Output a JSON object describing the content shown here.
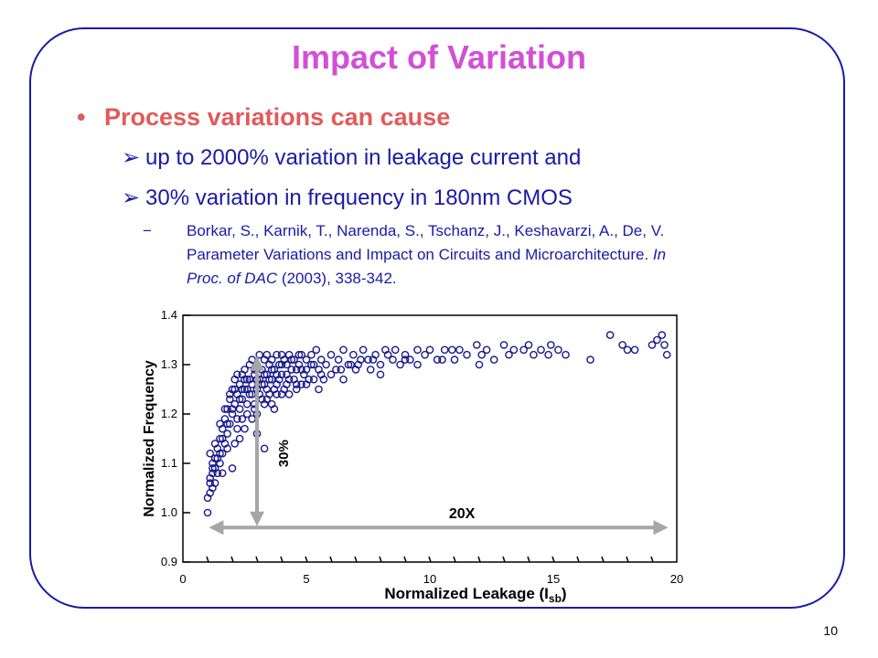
{
  "slide": {
    "title": "Impact of Variation",
    "bullet": "Process variations can cause",
    "sub1": "up to 2000% variation in leakage current and",
    "sub2": "30% variation in frequency in 180nm CMOS",
    "ref_dash": "−",
    "ref_line1": "Borkar, S., Karnik, T., Narenda, S., Tschanz, J., Keshavarzi, A., De, V.",
    "ref_line2a": "Parameter Variations and Impact on Circuits and Microarchitecture. ",
    "ref_line2b": "In",
    "ref_line3a": "Proc. of DAC",
    "ref_line3b": " (2003), 338-342.",
    "page_number": "10",
    "bullet_symbol": "•",
    "arrow_symbol": "➢"
  },
  "chart_data": {
    "type": "scatter",
    "xlabel": "Normalized Leakage (I",
    "xlabel_sub": "sb",
    "xlabel_close": ")",
    "ylabel": "Normalized Frequency",
    "xlim": [
      0,
      20
    ],
    "ylim": [
      0.9,
      1.4
    ],
    "x_ticks": [
      "0",
      "5",
      "10",
      "15",
      "20"
    ],
    "y_ticks": [
      "0.9",
      "1.0",
      "1.1",
      "1.2",
      "1.3",
      "1.4"
    ],
    "annotation_vertical": "30%",
    "annotation_horizontal": "20X",
    "marker_color": "#1a1a8c",
    "points": [
      [
        1.0,
        1.0
      ],
      [
        1.1,
        1.04
      ],
      [
        1.1,
        1.07
      ],
      [
        1.2,
        1.05
      ],
      [
        1.2,
        1.09
      ],
      [
        1.3,
        1.11
      ],
      [
        1.3,
        1.06
      ],
      [
        1.4,
        1.08
      ],
      [
        1.4,
        1.13
      ],
      [
        1.5,
        1.1
      ],
      [
        1.5,
        1.15
      ],
      [
        1.6,
        1.12
      ],
      [
        1.6,
        1.17
      ],
      [
        1.7,
        1.14
      ],
      [
        1.7,
        1.19
      ],
      [
        1.8,
        1.16
      ],
      [
        1.8,
        1.21
      ],
      [
        1.9,
        1.18
      ],
      [
        1.9,
        1.23
      ],
      [
        2.0,
        1.2
      ],
      [
        2.0,
        1.25
      ],
      [
        2.1,
        1.22
      ],
      [
        2.1,
        1.27
      ],
      [
        2.2,
        1.24
      ],
      [
        2.2,
        1.19
      ],
      [
        2.3,
        1.26
      ],
      [
        2.3,
        1.21
      ],
      [
        2.4,
        1.28
      ],
      [
        2.4,
        1.23
      ],
      [
        2.5,
        1.25
      ],
      [
        2.5,
        1.29
      ],
      [
        2.6,
        1.22
      ],
      [
        2.6,
        1.27
      ],
      [
        2.7,
        1.3
      ],
      [
        2.7,
        1.24
      ],
      [
        2.8,
        1.26
      ],
      [
        2.8,
        1.31
      ],
      [
        2.9,
        1.28
      ],
      [
        2.9,
        1.22
      ],
      [
        3.0,
        1.3
      ],
      [
        3.0,
        1.25
      ],
      [
        3.1,
        1.27
      ],
      [
        3.1,
        1.32
      ],
      [
        3.2,
        1.29
      ],
      [
        3.2,
        1.23
      ],
      [
        3.3,
        1.31
      ],
      [
        3.3,
        1.26
      ],
      [
        3.4,
        1.28
      ],
      [
        3.4,
        1.32
      ],
      [
        3.5,
        1.3
      ],
      [
        3.5,
        1.24
      ],
      [
        3.6,
        1.27
      ],
      [
        3.6,
        1.31
      ],
      [
        3.7,
        1.29
      ],
      [
        3.8,
        1.32
      ],
      [
        3.8,
        1.26
      ],
      [
        3.9,
        1.3
      ],
      [
        4.0,
        1.28
      ],
      [
        4.0,
        1.32
      ],
      [
        4.1,
        1.25
      ],
      [
        4.2,
        1.3
      ],
      [
        4.3,
        1.27
      ],
      [
        4.3,
        1.32
      ],
      [
        4.4,
        1.29
      ],
      [
        4.5,
        1.31
      ],
      [
        4.6,
        1.26
      ],
      [
        4.7,
        1.3
      ],
      [
        4.8,
        1.32
      ],
      [
        4.9,
        1.28
      ],
      [
        5.0,
        1.31
      ],
      [
        5.1,
        1.27
      ],
      [
        5.2,
        1.32
      ],
      [
        5.3,
        1.3
      ],
      [
        5.4,
        1.33
      ],
      [
        5.5,
        1.29
      ],
      [
        5.6,
        1.31
      ],
      [
        5.7,
        1.27
      ],
      [
        5.8,
        1.3
      ],
      [
        6.0,
        1.32
      ],
      [
        6.2,
        1.29
      ],
      [
        6.3,
        1.31
      ],
      [
        6.5,
        1.33
      ],
      [
        6.7,
        1.3
      ],
      [
        6.9,
        1.32
      ],
      [
        7.1,
        1.3
      ],
      [
        7.3,
        1.33
      ],
      [
        7.5,
        1.31
      ],
      [
        7.6,
        1.29
      ],
      [
        7.8,
        1.32
      ],
      [
        8.0,
        1.3
      ],
      [
        8.2,
        1.33
      ],
      [
        8.5,
        1.31
      ],
      [
        8.6,
        1.33
      ],
      [
        8.8,
        1.3
      ],
      [
        9.0,
        1.32
      ],
      [
        9.2,
        1.31
      ],
      [
        9.5,
        1.33
      ],
      [
        9.8,
        1.32
      ],
      [
        10.0,
        1.33
      ],
      [
        10.3,
        1.31
      ],
      [
        10.6,
        1.33
      ],
      [
        10.9,
        1.33
      ],
      [
        11.2,
        1.33
      ],
      [
        11.5,
        1.32
      ],
      [
        11.9,
        1.34
      ],
      [
        12.1,
        1.32
      ],
      [
        12.3,
        1.33
      ],
      [
        12.6,
        1.31
      ],
      [
        13.0,
        1.34
      ],
      [
        13.4,
        1.33
      ],
      [
        13.8,
        1.33
      ],
      [
        14.0,
        1.34
      ],
      [
        14.2,
        1.32
      ],
      [
        14.5,
        1.33
      ],
      [
        14.8,
        1.32
      ],
      [
        15.2,
        1.33
      ],
      [
        15.5,
        1.32
      ],
      [
        17.3,
        1.36
      ],
      [
        17.8,
        1.34
      ],
      [
        18.0,
        1.33
      ],
      [
        19.2,
        1.35
      ],
      [
        19.5,
        1.34
      ],
      [
        19.4,
        1.36
      ],
      [
        19.6,
        1.32
      ],
      [
        19.0,
        1.34
      ],
      [
        1.0,
        1.03
      ],
      [
        1.1,
        1.06
      ],
      [
        1.2,
        1.1
      ],
      [
        1.3,
        1.14
      ],
      [
        1.4,
        1.11
      ],
      [
        1.5,
        1.18
      ],
      [
        1.6,
        1.15
      ],
      [
        1.7,
        1.21
      ],
      [
        1.8,
        1.18
      ],
      [
        1.9,
        1.24
      ],
      [
        2.0,
        1.21
      ],
      [
        2.1,
        1.25
      ],
      [
        2.2,
        1.28
      ],
      [
        2.3,
        1.23
      ],
      [
        2.4,
        1.25
      ],
      [
        2.5,
        1.27
      ],
      [
        2.6,
        1.25
      ],
      [
        2.7,
        1.27
      ],
      [
        2.8,
        1.24
      ],
      [
        2.9,
        1.29
      ],
      [
        3.0,
        1.27
      ],
      [
        3.1,
        1.24
      ],
      [
        3.2,
        1.26
      ],
      [
        3.3,
        1.28
      ],
      [
        3.4,
        1.25
      ],
      [
        3.5,
        1.27
      ],
      [
        3.6,
        1.29
      ],
      [
        3.7,
        1.25
      ],
      [
        3.8,
        1.28
      ],
      [
        3.9,
        1.27
      ],
      [
        4.0,
        1.3
      ],
      [
        4.1,
        1.31
      ],
      [
        4.2,
        1.28
      ],
      [
        4.4,
        1.31
      ],
      [
        4.5,
        1.27
      ],
      [
        4.6,
        1.29
      ],
      [
        4.7,
        1.32
      ],
      [
        4.8,
        1.29
      ],
      [
        5.0,
        1.29
      ],
      [
        5.2,
        1.3
      ],
      [
        2.0,
        1.09
      ],
      [
        2.3,
        1.15
      ],
      [
        2.5,
        1.17
      ],
      [
        2.8,
        1.19
      ],
      [
        3.0,
        1.2
      ],
      [
        3.3,
        1.22
      ],
      [
        3.6,
        1.22
      ],
      [
        4.0,
        1.24
      ],
      [
        4.3,
        1.24
      ],
      [
        4.6,
        1.25
      ],
      [
        5.0,
        1.26
      ],
      [
        5.3,
        1.27
      ],
      [
        5.6,
        1.28
      ],
      [
        6.0,
        1.28
      ],
      [
        6.4,
        1.29
      ],
      [
        6.8,
        1.3
      ],
      [
        7.2,
        1.31
      ],
      [
        7.7,
        1.31
      ],
      [
        8.3,
        1.32
      ],
      [
        9.0,
        1.31
      ],
      [
        1.2,
        1.08
      ],
      [
        1.5,
        1.12
      ],
      [
        1.8,
        1.13
      ],
      [
        2.2,
        1.17
      ],
      [
        2.6,
        1.2
      ],
      [
        2.4,
        1.19
      ],
      [
        2.9,
        1.21
      ],
      [
        3.4,
        1.23
      ],
      [
        3.8,
        1.24
      ],
      [
        4.2,
        1.26
      ],
      [
        1.1,
        1.12
      ],
      [
        1.3,
        1.09
      ],
      [
        1.6,
        1.08
      ],
      [
        2.1,
        1.14
      ],
      [
        3.3,
        1.13
      ],
      [
        3.0,
        1.16
      ],
      [
        3.7,
        1.21
      ],
      [
        4.8,
        1.26
      ],
      [
        5.5,
        1.25
      ],
      [
        6.5,
        1.27
      ],
      [
        7.0,
        1.29
      ],
      [
        8.0,
        1.28
      ],
      [
        9.5,
        1.3
      ],
      [
        10.5,
        1.31
      ],
      [
        11.0,
        1.31
      ],
      [
        12.0,
        1.3
      ],
      [
        16.5,
        1.31
      ],
      [
        14.9,
        1.34
      ],
      [
        18.3,
        1.33
      ],
      [
        13.2,
        1.32
      ]
    ]
  }
}
